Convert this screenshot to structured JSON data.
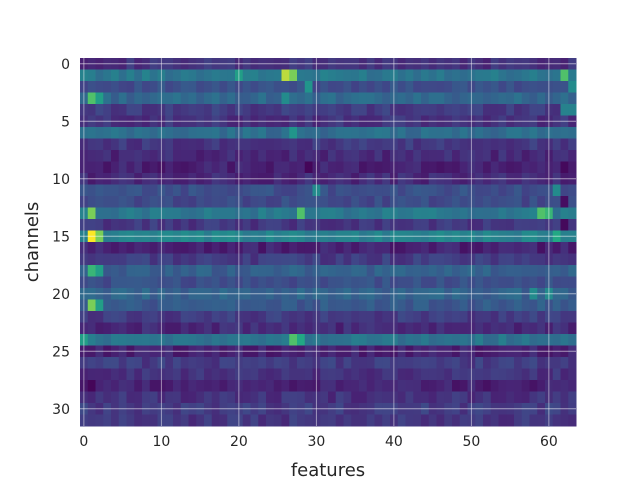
{
  "chart_data": {
    "type": "heatmap",
    "title": "",
    "xlabel": "features",
    "ylabel": "channels",
    "rows": 32,
    "cols": 64,
    "xlim": [
      -0.5,
      63.5
    ],
    "ylim": [
      31.5,
      -0.5
    ],
    "x_ticks": [
      0,
      10,
      20,
      30,
      40,
      50,
      60
    ],
    "y_ticks": [
      0,
      5,
      10,
      15,
      20,
      25,
      30
    ],
    "grid": true,
    "colormap": "viridis",
    "value_range": [
      0,
      1
    ],
    "row_profiles": [
      {
        "row": 0,
        "base": 0.18,
        "hot": []
      },
      {
        "row": 1,
        "base": 0.5,
        "hot": [
          {
            "c": 20,
            "v": 0.7
          },
          {
            "c": 26,
            "v": 0.95
          },
          {
            "c": 27,
            "v": 0.9
          },
          {
            "c": 62,
            "v": 0.85
          }
        ]
      },
      {
        "row": 2,
        "base": 0.3,
        "hot": [
          {
            "c": 29,
            "v": 0.65
          },
          {
            "c": 63,
            "v": 0.6
          }
        ]
      },
      {
        "row": 3,
        "base": 0.42,
        "hot": [
          {
            "c": 1,
            "v": 0.85
          },
          {
            "c": 2,
            "v": 0.7
          },
          {
            "c": 26,
            "v": 0.6
          }
        ]
      },
      {
        "row": 4,
        "base": 0.22,
        "hot": [
          {
            "c": 62,
            "v": 0.55
          },
          {
            "c": 63,
            "v": 0.55
          }
        ]
      },
      {
        "row": 5,
        "base": 0.18,
        "hot": []
      },
      {
        "row": 6,
        "base": 0.45,
        "hot": [
          {
            "c": 27,
            "v": 0.65
          }
        ]
      },
      {
        "row": 7,
        "base": 0.2,
        "hot": []
      },
      {
        "row": 8,
        "base": 0.15,
        "hot": []
      },
      {
        "row": 9,
        "base": 0.12,
        "hot": [
          {
            "c": 29,
            "v": 0.02
          },
          {
            "c": 62,
            "v": 0.03
          }
        ]
      },
      {
        "row": 10,
        "base": 0.15,
        "hot": []
      },
      {
        "row": 11,
        "base": 0.3,
        "hot": [
          {
            "c": 30,
            "v": 0.6
          },
          {
            "c": 61,
            "v": 0.6
          }
        ]
      },
      {
        "row": 12,
        "base": 0.28,
        "hot": [
          {
            "c": 62,
            "v": 0.05
          }
        ]
      },
      {
        "row": 13,
        "base": 0.5,
        "hot": [
          {
            "c": 1,
            "v": 0.9
          },
          {
            "c": 28,
            "v": 0.85
          },
          {
            "c": 59,
            "v": 0.85
          },
          {
            "c": 60,
            "v": 0.8
          }
        ]
      },
      {
        "row": 14,
        "base": 0.2,
        "hot": [
          {
            "c": 62,
            "v": 0.03
          }
        ]
      },
      {
        "row": 15,
        "base": 0.55,
        "hot": [
          {
            "c": 1,
            "v": 1.0
          },
          {
            "c": 2,
            "v": 0.9
          },
          {
            "c": 27,
            "v": 0.6
          },
          {
            "c": 61,
            "v": 0.75
          }
        ]
      },
      {
        "row": 16,
        "base": 0.12,
        "hot": []
      },
      {
        "row": 17,
        "base": 0.22,
        "hot": []
      },
      {
        "row": 18,
        "base": 0.38,
        "hot": [
          {
            "c": 1,
            "v": 0.8
          },
          {
            "c": 2,
            "v": 0.7
          }
        ]
      },
      {
        "row": 19,
        "base": 0.3,
        "hot": []
      },
      {
        "row": 20,
        "base": 0.4,
        "hot": [
          {
            "c": 58,
            "v": 0.6
          },
          {
            "c": 60,
            "v": 0.6
          }
        ]
      },
      {
        "row": 21,
        "base": 0.35,
        "hot": [
          {
            "c": 1,
            "v": 0.9
          },
          {
            "c": 2,
            "v": 0.7
          }
        ]
      },
      {
        "row": 22,
        "base": 0.22,
        "hot": []
      },
      {
        "row": 23,
        "base": 0.15,
        "hot": []
      },
      {
        "row": 24,
        "base": 0.48,
        "hot": [
          {
            "c": 0,
            "v": 0.7
          },
          {
            "c": 27,
            "v": 0.85
          },
          {
            "c": 28,
            "v": 0.75
          }
        ]
      },
      {
        "row": 25,
        "base": 0.12,
        "hot": []
      },
      {
        "row": 26,
        "base": 0.22,
        "hot": []
      },
      {
        "row": 27,
        "base": 0.18,
        "hot": []
      },
      {
        "row": 28,
        "base": 0.12,
        "hot": [
          {
            "c": 1,
            "v": 0.02
          }
        ]
      },
      {
        "row": 29,
        "base": 0.18,
        "hot": []
      },
      {
        "row": 30,
        "base": 0.22,
        "hot": []
      },
      {
        "row": 31,
        "base": 0.2,
        "hot": []
      }
    ]
  }
}
